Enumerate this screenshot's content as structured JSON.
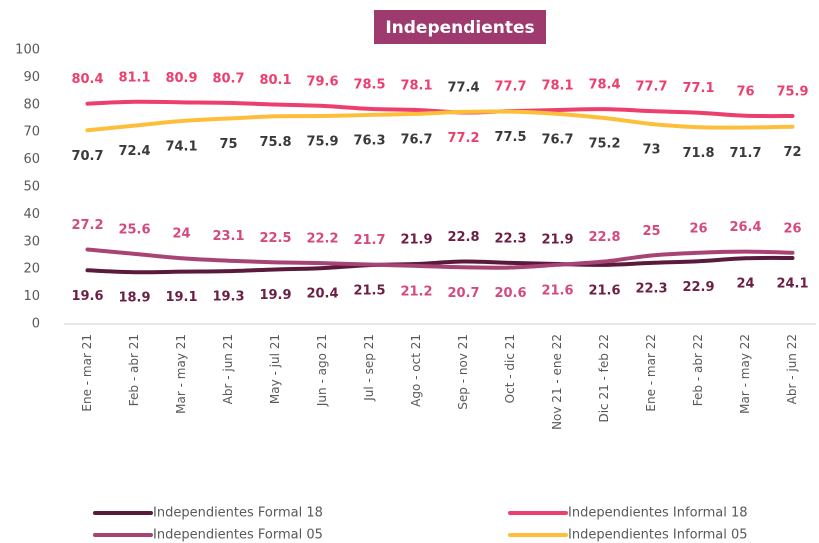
{
  "chart_data": {
    "type": "line",
    "title": "Independientes",
    "categories": [
      "Ene - mar 21",
      "Feb - abr 21",
      "Mar - may 21",
      "Abr - jun 21",
      "May - jul 21",
      "Jun - ago 21",
      "Jul - sep 21",
      "Ago - oct 21",
      "Sep - nov 21",
      "Oct - dic 21",
      "Nov 21 - ene 22",
      "Dic 21 - feb 22",
      "Ene - mar 22",
      "Feb - abr 22",
      "Mar - may 22",
      "Abr - jun 22"
    ],
    "series": [
      {
        "name": "Independientes Formal 18",
        "color": "#5a1a3c",
        "label_color": "#6b1f45",
        "values": [
          19.6,
          18.9,
          19.1,
          19.3,
          19.9,
          20.4,
          21.5,
          21.9,
          22.8,
          22.3,
          21.9,
          21.6,
          22.3,
          22.9,
          24.0,
          24.1
        ]
      },
      {
        "name": "Independientes Informal 18",
        "color": "#ec3f6e",
        "label_color": "#ec3f6e",
        "values": [
          80.4,
          81.1,
          80.9,
          80.7,
          80.1,
          79.6,
          78.5,
          78.1,
          77.2,
          77.7,
          78.1,
          78.4,
          77.7,
          77.1,
          76.0,
          75.9
        ]
      },
      {
        "name": "Independientes Formal 05",
        "color": "#a84474",
        "label_color": "#d44a80",
        "values": [
          27.2,
          25.6,
          24.0,
          23.1,
          22.5,
          22.2,
          21.7,
          21.2,
          20.7,
          20.6,
          21.6,
          22.8,
          25.0,
          26.0,
          26.4,
          26.0
        ]
      },
      {
        "name": "Independientes Informal 05",
        "color": "#fdbf3a",
        "label_color": "#3a3a3a",
        "values": [
          70.7,
          72.4,
          74.1,
          75.0,
          75.8,
          75.9,
          76.3,
          76.7,
          77.4,
          77.5,
          76.7,
          75.2,
          73.0,
          71.8,
          71.7,
          72.0
        ]
      }
    ],
    "ylim": [
      0,
      100
    ],
    "yticks": [
      0,
      10,
      20,
      30,
      40,
      50,
      60,
      70,
      80,
      90,
      100
    ],
    "grid": false,
    "legend": "bottom"
  }
}
